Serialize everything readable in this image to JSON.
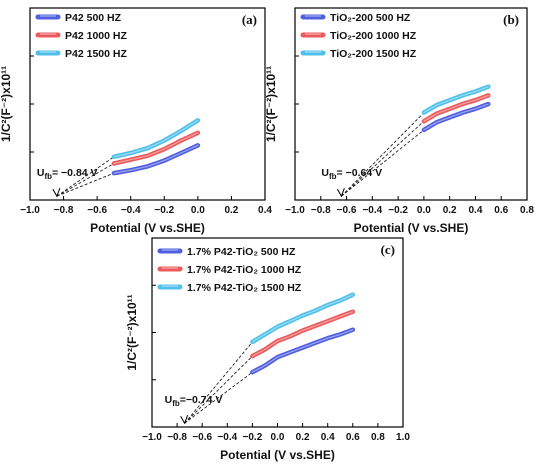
{
  "colors": {
    "s500": "#4f5fe0",
    "s1000": "#ec5a5c",
    "s1500": "#4fc0ea",
    "axis": "#000000"
  },
  "chart_data": [
    {
      "type": "line",
      "panel_label": "(a)",
      "xlabel": "Potential (V vs.SHE)",
      "ylabel": "1/C²(F⁻²)x10¹¹",
      "xlim": [
        -1.0,
        0.4
      ],
      "x_ticks": [
        -1.0,
        -0.8,
        -0.6,
        -0.4,
        -0.2,
        0.0,
        0.2,
        0.4
      ],
      "x_tick_labels": [
        "−1.0",
        "−0.8",
        "−0.6",
        "−0.4",
        "−0.2",
        "0.0",
        "0.2",
        "0.4"
      ],
      "ylim": [
        0,
        1
      ],
      "y_ticks_labeled": false,
      "legend_position": "top-left",
      "annotation": "U_fb = −0.84 V",
      "annotation_text": "= −0.84 V",
      "flatband_potential": -0.84,
      "series": [
        {
          "name": "P42 500 HZ",
          "color_key": "s500",
          "x": [
            -0.5,
            -0.4,
            -0.3,
            -0.2,
            -0.1,
            0.0
          ],
          "y": [
            0.14,
            0.155,
            0.175,
            0.205,
            0.245,
            0.285
          ]
        },
        {
          "name": "P42 1000 HZ",
          "color_key": "s1000",
          "x": [
            -0.5,
            -0.4,
            -0.3,
            -0.2,
            -0.1,
            0.0
          ],
          "y": [
            0.19,
            0.21,
            0.23,
            0.265,
            0.31,
            0.35
          ]
        },
        {
          "name": "P42 1500 HZ",
          "color_key": "s1500",
          "x": [
            -0.5,
            -0.4,
            -0.3,
            -0.2,
            -0.1,
            0.0
          ],
          "y": [
            0.225,
            0.245,
            0.27,
            0.31,
            0.36,
            0.415
          ]
        }
      ]
    },
    {
      "type": "line",
      "panel_label": "(b)",
      "xlabel": "Potential (V vs.SHE)",
      "ylabel": "1/C²(F⁻²)x10¹¹",
      "xlim": [
        -1.0,
        0.8
      ],
      "x_ticks": [
        -1.0,
        -0.8,
        -0.6,
        -0.4,
        -0.2,
        0.0,
        0.2,
        0.4,
        0.6,
        0.8
      ],
      "x_tick_labels": [
        "−1.0",
        "−0.8",
        "−0.6",
        "−0.4",
        "−0.2",
        "0.0",
        "0.2",
        "0.4",
        "0.6",
        "0.8"
      ],
      "ylim": [
        0,
        1
      ],
      "y_ticks_labeled": false,
      "legend_position": "top-left",
      "annotation": "U_fb = −0.64 V",
      "annotation_text": "= −0.64 V",
      "flatband_potential": -0.64,
      "series": [
        {
          "name": "TiO₂-200 500 HZ",
          "color_key": "s500",
          "x": [
            0.0,
            0.1,
            0.2,
            0.3,
            0.4,
            0.5
          ],
          "y": [
            0.365,
            0.405,
            0.43,
            0.455,
            0.475,
            0.5
          ]
        },
        {
          "name": "TiO₂-200 1000 HZ",
          "color_key": "s1000",
          "x": [
            0.0,
            0.1,
            0.2,
            0.3,
            0.4,
            0.5
          ],
          "y": [
            0.41,
            0.45,
            0.475,
            0.5,
            0.52,
            0.545
          ]
        },
        {
          "name": "TiO₂-200 1500 HZ",
          "color_key": "s1500",
          "x": [
            0.0,
            0.1,
            0.2,
            0.3,
            0.4,
            0.5
          ],
          "y": [
            0.455,
            0.495,
            0.52,
            0.545,
            0.565,
            0.59
          ]
        }
      ]
    },
    {
      "type": "line",
      "panel_label": "(c)",
      "xlabel": "Potential (V vs.SHE)",
      "ylabel": "1/C²(F⁻²)x10¹¹",
      "xlim": [
        -1.0,
        1.0
      ],
      "x_ticks": [
        -1.0,
        -0.8,
        -0.6,
        -0.4,
        -0.2,
        0.0,
        0.2,
        0.4,
        0.6,
        0.8,
        1.0
      ],
      "x_tick_labels": [
        "−1.0",
        "−0.8",
        "−0.6",
        "−0.4",
        "−0.2",
        "0.0",
        "0.2",
        "0.4",
        "0.6",
        "0.8",
        "1.0"
      ],
      "ylim": [
        0,
        1
      ],
      "y_ticks_labeled": false,
      "legend_position": "top-left",
      "annotation": "U_fb = −0.74 V",
      "annotation_text": "=−0.74 V",
      "flatband_potential": -0.74,
      "series": [
        {
          "name": "1.7% P42-TiO₂  500 HZ",
          "color_key": "s500",
          "x": [
            -0.2,
            -0.1,
            0.0,
            0.1,
            0.2,
            0.3,
            0.4,
            0.5,
            0.6
          ],
          "y": [
            0.29,
            0.325,
            0.37,
            0.395,
            0.42,
            0.445,
            0.47,
            0.49,
            0.515
          ]
        },
        {
          "name": "1.7% P42-TiO₂  1000 HZ",
          "color_key": "s1000",
          "x": [
            -0.2,
            -0.1,
            0.0,
            0.1,
            0.2,
            0.3,
            0.4,
            0.5,
            0.6
          ],
          "y": [
            0.375,
            0.41,
            0.455,
            0.48,
            0.51,
            0.535,
            0.56,
            0.585,
            0.61
          ]
        },
        {
          "name": "1.7% P42-TiO₂  1500 HZ",
          "color_key": "s1500",
          "x": [
            -0.2,
            -0.1,
            0.0,
            0.1,
            0.2,
            0.3,
            0.4,
            0.5,
            0.6
          ],
          "y": [
            0.45,
            0.49,
            0.53,
            0.56,
            0.59,
            0.615,
            0.645,
            0.67,
            0.7
          ]
        }
      ]
    }
  ]
}
